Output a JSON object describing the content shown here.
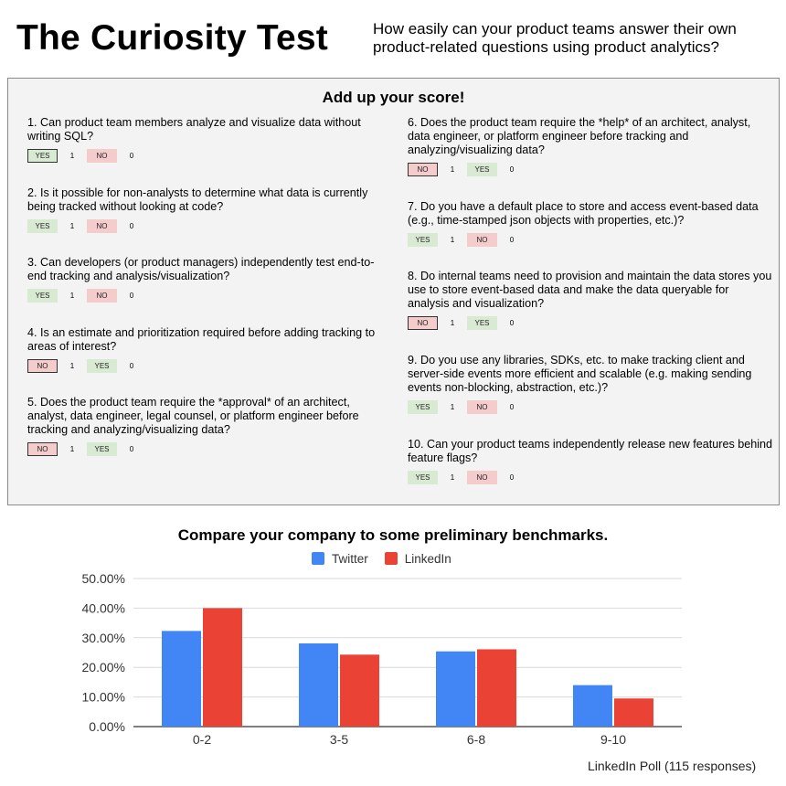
{
  "header": {
    "title": "The Curiosity Test",
    "subtitle": "How easily can your product teams answer their own product-related questions using product analytics?"
  },
  "scorecard": {
    "heading": "Add up your score!",
    "questions": [
      {
        "text": "1. Can product team members analyze and visualize data without writing SQL?",
        "first": "YES",
        "first_score": "1",
        "second": "NO",
        "second_score": "0",
        "selected": "first"
      },
      {
        "text": "2. Is it possible for non-analysts to determine what data is currently being tracked without looking at code?",
        "first": "YES",
        "first_score": "1",
        "second": "NO",
        "second_score": "0",
        "selected": "none"
      },
      {
        "text": "3. Can developers (or product managers) independently test end-to-end tracking and analysis/visualization?",
        "first": "YES",
        "first_score": "1",
        "second": "NO",
        "second_score": "0",
        "selected": "none"
      },
      {
        "text": "4. Is an estimate and prioritization required before adding tracking to areas of interest?",
        "first": "NO",
        "first_score": "1",
        "second": "YES",
        "second_score": "0",
        "selected": "first"
      },
      {
        "text": "5. Does the product team require the *approval* of an architect, analyst, data engineer, legal counsel, or platform engineer before tracking and analyzing/visualizing data?",
        "first": "NO",
        "first_score": "1",
        "second": "YES",
        "second_score": "0",
        "selected": "first"
      },
      {
        "text": "6. Does the product team require the *help* of an architect, analyst, data engineer, or platform engineer before tracking and analyzing/visualizing data?",
        "first": "NO",
        "first_score": "1",
        "second": "YES",
        "second_score": "0",
        "selected": "first"
      },
      {
        "text": "7. Do you have a default place to store and access event-based data (e.g., time-stamped json objects with properties, etc.)?",
        "first": "YES",
        "first_score": "1",
        "second": "NO",
        "second_score": "0",
        "selected": "none"
      },
      {
        "text": "8. Do internal teams need to provision and maintain the data stores you use to store event-based data and make the data queryable for analysis and visualization?",
        "first": "NO",
        "first_score": "1",
        "second": "YES",
        "second_score": "0",
        "selected": "first"
      },
      {
        "text": "9. Do you use any libraries, SDKs, etc. to make tracking client and server-side events more efficient and scalable (e.g. making sending events non-blocking, abstraction, etc.)?",
        "first": "YES",
        "first_score": "1",
        "second": "NO",
        "second_score": "0",
        "selected": "none"
      },
      {
        "text": "10. Can your product teams independently release new features behind feature flags?",
        "first": "YES",
        "first_score": "1",
        "second": "NO",
        "second_score": "0",
        "selected": "none"
      }
    ]
  },
  "colors": {
    "twitter": "#4285f4",
    "linkedin": "#ea4335",
    "yes_fill": "#d9ead3",
    "no_fill": "#f4cccc",
    "grid": "#d9d9d9"
  },
  "chart_data": {
    "type": "bar",
    "title": "Compare your company to some preliminary benchmarks.",
    "categories": [
      "0-2",
      "3-5",
      "6-8",
      "9-10"
    ],
    "series": [
      {
        "name": "Twitter",
        "values": [
          32.3,
          28.1,
          25.4,
          14.0
        ]
      },
      {
        "name": "LinkedIn",
        "values": [
          40.0,
          24.3,
          26.1,
          9.5
        ]
      }
    ],
    "ylim": [
      0,
      50
    ],
    "yticks": [
      "0.00%",
      "10.00%",
      "20.00%",
      "30.00%",
      "40.00%",
      "50.00%"
    ],
    "grid": true,
    "legend_position": "top",
    "xlabel": "",
    "ylabel": ""
  },
  "footnote": "LinkedIn Poll (115 responses)"
}
